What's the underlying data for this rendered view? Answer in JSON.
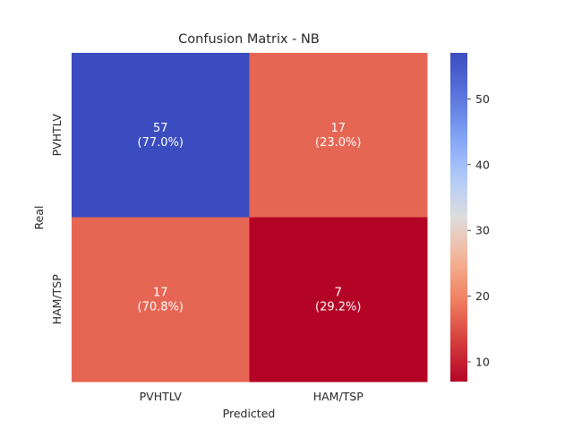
{
  "chart_data": {
    "type": "heatmap",
    "title": "Confusion Matrix - NB",
    "xlabel": "Predicted",
    "ylabel": "Real",
    "x_categories": [
      "PVHTLV",
      "HAM/TSP"
    ],
    "y_categories": [
      "PVHTLV",
      "HAM/TSP"
    ],
    "values": [
      [
        57,
        17
      ],
      [
        17,
        7
      ]
    ],
    "cell_labels": [
      [
        {
          "count": "57",
          "pct": "(77.0%)"
        },
        {
          "count": "17",
          "pct": "(23.0%)"
        }
      ],
      [
        {
          "count": "17",
          "pct": "(70.8%)"
        },
        {
          "count": "7",
          "pct": "(29.2%)"
        }
      ]
    ],
    "colormap": "coolwarm_r",
    "color_range": [
      7,
      57
    ],
    "colorbar_ticks": [
      10,
      20,
      30,
      40,
      50
    ],
    "grid": false
  }
}
